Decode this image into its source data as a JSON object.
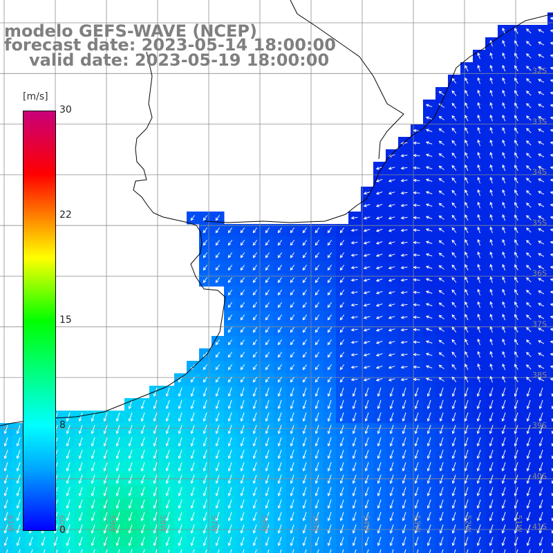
{
  "title": {
    "line1": "modelo GEFS-WAVE (NCEP)",
    "line2": "forecast date: 2023-05-14 18:00:00",
    "line3": "valid date: 2023-05-19 18:00:00"
  },
  "colorbar": {
    "unit": "[m/s]",
    "ticks": [
      "30",
      "22",
      "15",
      "8",
      "0"
    ],
    "colors": [
      "#0000ff",
      "#00aaff",
      "#00ffff",
      "#00ff00",
      "#ffff00",
      "#ff8000",
      "#ff0000",
      "#c8007a"
    ]
  },
  "lat_labels": [
    "32S",
    "33S",
    "34S",
    "35S",
    "36S",
    "37S",
    "38S",
    "39S",
    "40S",
    "41S"
  ],
  "lon_labels": [
    "61W",
    "60W",
    "59W",
    "58W",
    "57W",
    "56W",
    "55W",
    "54W",
    "53W",
    "52W",
    "51W"
  ],
  "colors": {
    "land": "#ffffff",
    "grid": "#8c8c8c",
    "coast": "#000000",
    "arrow": "#ffffff",
    "title": "#7f7f7f"
  }
}
